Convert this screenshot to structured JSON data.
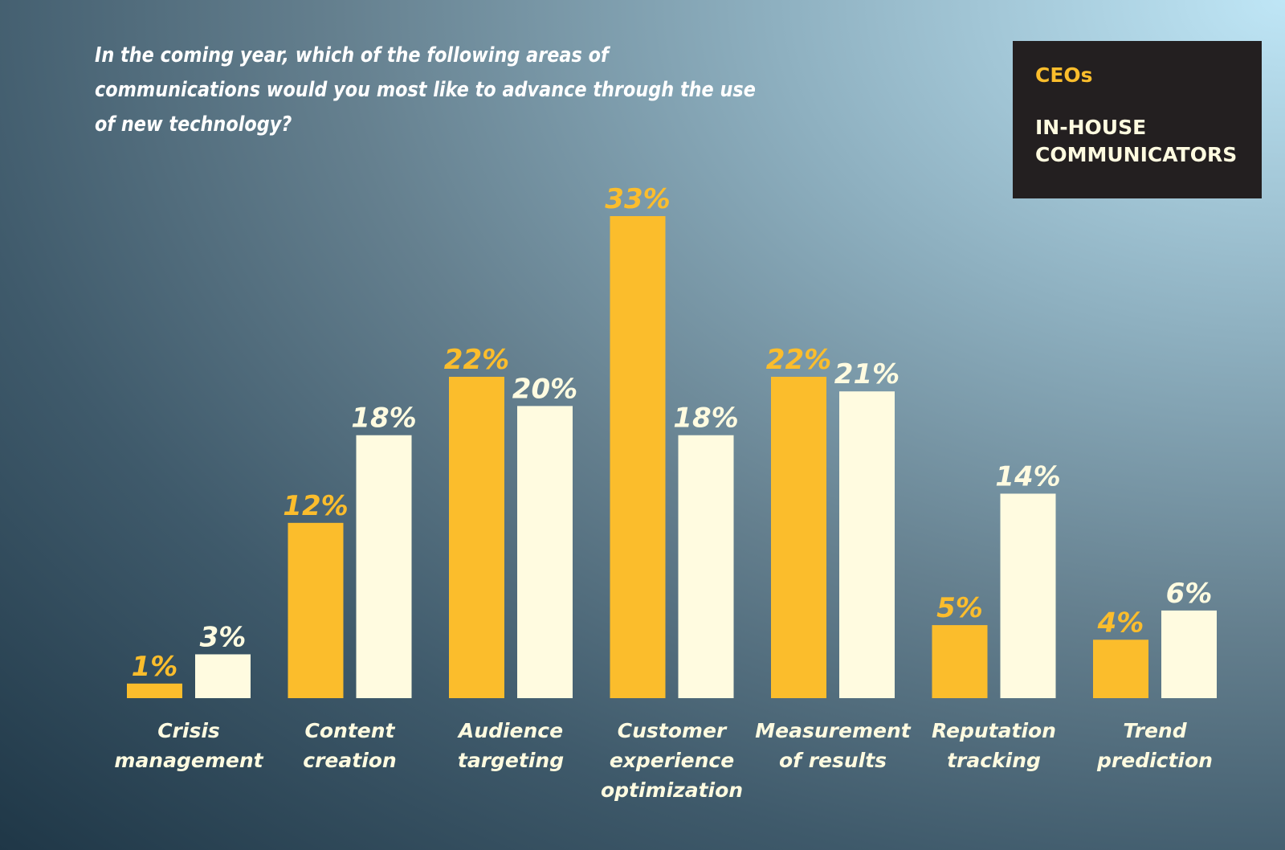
{
  "title": "In the coming year, which of the following areas of communications would you most like to advance through the use of new technology?",
  "legend": {
    "ceos": "CEOs",
    "in_house": "IN-HOUSE COMMUNICATORS"
  },
  "colors": {
    "ceos": "#fbbd2c",
    "in_house": "#fffbe0"
  },
  "chart_data": {
    "type": "bar",
    "categories": [
      [
        "Crisis",
        "management"
      ],
      [
        "Content",
        "creation"
      ],
      [
        "Audience",
        "targeting"
      ],
      [
        "Customer",
        "experience",
        "optimization"
      ],
      [
        "Measurement",
        "of results"
      ],
      [
        "Reputation",
        "tracking"
      ],
      [
        "Trend",
        "prediction"
      ]
    ],
    "series": [
      {
        "name": "CEOs",
        "values": [
          1,
          12,
          22,
          33,
          22,
          5,
          4
        ]
      },
      {
        "name": "IN-HOUSE COMMUNICATORS",
        "values": [
          3,
          18,
          20,
          18,
          21,
          14,
          6
        ]
      }
    ],
    "value_suffix": "%",
    "ylim": [
      0,
      33
    ],
    "legend_position": "top-right",
    "grid": false
  }
}
